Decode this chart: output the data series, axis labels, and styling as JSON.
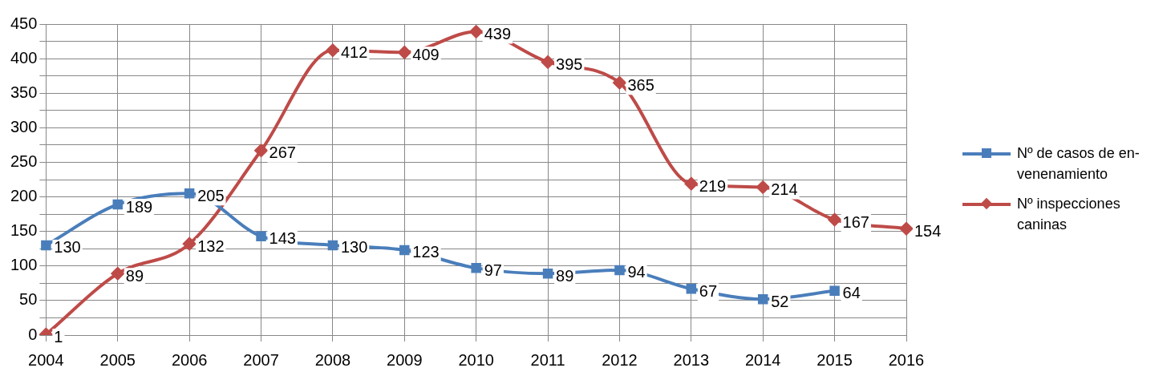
{
  "chart_data": {
    "type": "line",
    "categories": [
      "2004",
      "2005",
      "2006",
      "2007",
      "2008",
      "2009",
      "2010",
      "2011",
      "2012",
      "2013",
      "2014",
      "2015",
      "2016"
    ],
    "series": [
      {
        "name": "Nº de casos de en-venenamiento",
        "color": "#4a7ebb",
        "marker": "square",
        "values": [
          130,
          189,
          205,
          143,
          130,
          123,
          97,
          89,
          94,
          67,
          52,
          64,
          null
        ]
      },
      {
        "name": "Nº inspecciones caninas",
        "color": "#be4b48",
        "marker": "diamond",
        "values": [
          1,
          89,
          132,
          267,
          412,
          409,
          439,
          395,
          365,
          219,
          214,
          167,
          154
        ]
      }
    ],
    "ylim": [
      0,
      450
    ],
    "yticks": [
      0,
      {
        "value": 25,
        "label": null
      },
      50,
      {
        "value": 75,
        "label": null
      },
      100,
      {
        "value": 125,
        "label": null
      },
      150,
      {
        "value": 175,
        "label": null
      },
      200,
      {
        "value": 225,
        "label": null
      },
      250,
      {
        "value": 275,
        "label": null
      },
      300,
      {
        "value": 325,
        "label": null
      },
      350,
      {
        "value": 375,
        "label": null
      },
      400,
      {
        "value": 425,
        "label": null
      },
      450
    ],
    "grid": true,
    "legend": "right",
    "data_labels": true,
    "line_style": "solid"
  }
}
